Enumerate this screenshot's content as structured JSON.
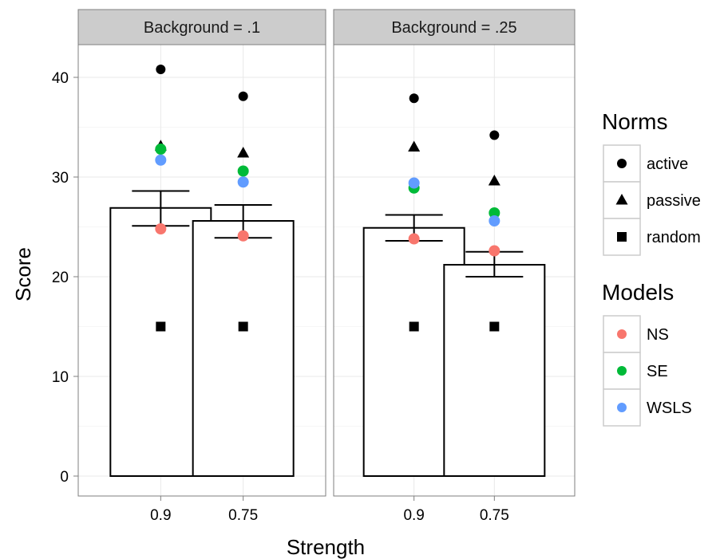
{
  "chart_data": {
    "type": "bar",
    "xlabel": "Strength",
    "ylabel": "Score",
    "ylim": [
      -2,
      43.5
    ],
    "yticks": [
      0,
      10,
      20,
      30,
      40
    ],
    "categories": [
      "0.9",
      "0.75"
    ],
    "panels": [
      {
        "label": "Background = .1",
        "bars": [
          {
            "category": "0.9",
            "mean": 26.9,
            "error_low": 25.1,
            "error_high": 28.6
          },
          {
            "category": "0.75",
            "mean": 25.6,
            "error_low": 23.9,
            "error_high": 27.2
          }
        ],
        "points": [
          {
            "category": "0.9",
            "norm": "active",
            "model": "",
            "value": 40.8
          },
          {
            "category": "0.9",
            "norm": "passive",
            "model": "",
            "value": 33.1
          },
          {
            "category": "0.9",
            "norm": "random",
            "model": "",
            "value": 15.0
          },
          {
            "category": "0.9",
            "norm": "",
            "model": "NS",
            "value": 24.8
          },
          {
            "category": "0.9",
            "norm": "",
            "model": "SE",
            "value": 32.8
          },
          {
            "category": "0.9",
            "norm": "",
            "model": "WSLS",
            "value": 31.7
          },
          {
            "category": "0.75",
            "norm": "active",
            "model": "",
            "value": 38.1
          },
          {
            "category": "0.75",
            "norm": "passive",
            "model": "",
            "value": 32.4
          },
          {
            "category": "0.75",
            "norm": "random",
            "model": "",
            "value": 15.0
          },
          {
            "category": "0.75",
            "norm": "",
            "model": "NS",
            "value": 24.1
          },
          {
            "category": "0.75",
            "norm": "",
            "model": "SE",
            "value": 30.6
          },
          {
            "category": "0.75",
            "norm": "",
            "model": "WSLS",
            "value": 29.5
          }
        ]
      },
      {
        "label": "Background = .25",
        "bars": [
          {
            "category": "0.9",
            "mean": 24.9,
            "error_low": 23.6,
            "error_high": 26.2
          },
          {
            "category": "0.75",
            "mean": 21.2,
            "error_low": 20.0,
            "error_high": 22.5
          }
        ],
        "points": [
          {
            "category": "0.9",
            "norm": "active",
            "model": "",
            "value": 37.9
          },
          {
            "category": "0.9",
            "norm": "passive",
            "model": "",
            "value": 33.0
          },
          {
            "category": "0.9",
            "norm": "random",
            "model": "",
            "value": 15.0
          },
          {
            "category": "0.9",
            "norm": "",
            "model": "NS",
            "value": 23.8
          },
          {
            "category": "0.9",
            "norm": "",
            "model": "SE",
            "value": 28.9
          },
          {
            "category": "0.9",
            "norm": "",
            "model": "WSLS",
            "value": 29.4
          },
          {
            "category": "0.75",
            "norm": "active",
            "model": "",
            "value": 34.2
          },
          {
            "category": "0.75",
            "norm": "passive",
            "model": "",
            "value": 29.6
          },
          {
            "category": "0.75",
            "norm": "random",
            "model": "",
            "value": 15.0
          },
          {
            "category": "0.75",
            "norm": "",
            "model": "NS",
            "value": 22.6
          },
          {
            "category": "0.75",
            "norm": "",
            "model": "SE",
            "value": 26.4
          },
          {
            "category": "0.75",
            "norm": "",
            "model": "WSLS",
            "value": 25.6
          }
        ]
      }
    ],
    "legends": [
      {
        "title": "Norms",
        "entries": [
          {
            "label": "active",
            "shape": "circle",
            "color": "#000000"
          },
          {
            "label": "passive",
            "shape": "triangle",
            "color": "#000000"
          },
          {
            "label": "random",
            "shape": "square",
            "color": "#000000"
          }
        ]
      },
      {
        "title": "Models",
        "entries": [
          {
            "label": "NS",
            "shape": "circle",
            "color": "#F8766D"
          },
          {
            "label": "SE",
            "shape": "circle",
            "color": "#00BA38"
          },
          {
            "label": "WSLS",
            "shape": "circle",
            "color": "#619CFF"
          }
        ]
      }
    ],
    "grid": true,
    "legend_position": "right"
  }
}
